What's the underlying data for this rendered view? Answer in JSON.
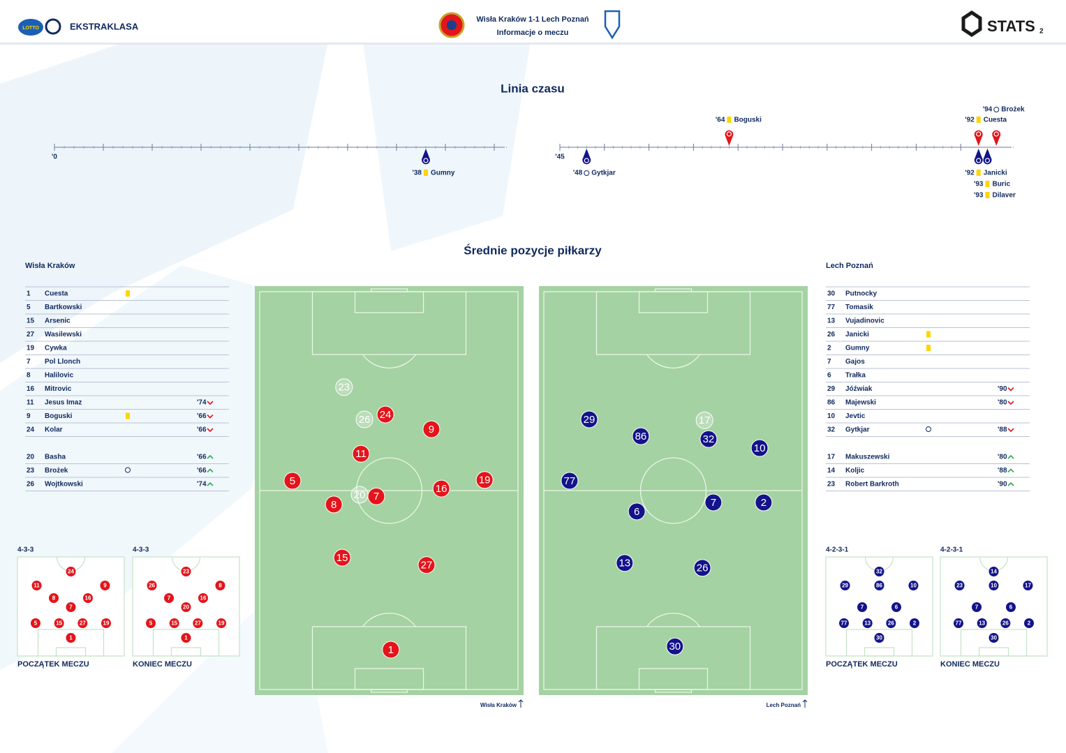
{
  "header": {
    "lotto": "LOTTO",
    "league": "EKSTRAKLASA",
    "title": "Wisła Kraków 1-1  Lech Poznań",
    "subtitle": "Informacje o meczu",
    "brand": "STATS",
    "page": "2"
  },
  "timeline": {
    "title": "Linia czasu",
    "halves": [
      {
        "start_label": "'0",
        "xlim": [
          0,
          45
        ],
        "ticks": [
          0,
          5,
          10,
          15,
          20,
          25,
          30,
          35,
          40,
          45
        ],
        "events": [
          {
            "minute": 38,
            "label": "'38",
            "player": "Gumny",
            "event": "yellow",
            "team": "away"
          }
        ]
      },
      {
        "start_label": "'45",
        "xlim": [
          45,
          95
        ],
        "ticks": [
          45,
          50,
          55,
          60,
          65,
          70,
          75,
          80,
          85,
          90
        ],
        "events": [
          {
            "minute": 48,
            "label": "'48",
            "player": "Gytkjar",
            "event": "goal",
            "team": "away"
          },
          {
            "minute": 64,
            "label": "'64",
            "player": "Boguski",
            "event": "yellow",
            "team": "home"
          },
          {
            "minute": 92,
            "label": "'92",
            "player": "Cuesta",
            "event": "yellow",
            "team": "home"
          },
          {
            "minute": 94,
            "label": "'94",
            "player": "Brożek",
            "event": "goal",
            "team": "home"
          },
          {
            "minute": 92,
            "label": "'92",
            "player": "Janicki",
            "event": "yellow",
            "team": "away"
          },
          {
            "minute": 93,
            "label": "'93",
            "player": "Buric",
            "event": "yellow",
            "team": "away"
          },
          {
            "minute": 93,
            "label": "'93",
            "player": "Dilaver",
            "event": "yellow",
            "team": "away"
          }
        ]
      }
    ]
  },
  "positions_title": "Średnie pozycje piłkarzy",
  "teams": [
    {
      "name": "Wisła Kraków",
      "side": "home",
      "color": "#e3151b",
      "starters": [
        {
          "number": 1,
          "name": "Cuesta",
          "card": "yellow"
        },
        {
          "number": 5,
          "name": "Bartkowski"
        },
        {
          "number": 15,
          "name": "Arsenic"
        },
        {
          "number": 27,
          "name": "Wasilewski"
        },
        {
          "number": 19,
          "name": "Cywka"
        },
        {
          "number": 7,
          "name": "Pol Llonch"
        },
        {
          "number": 8,
          "name": "Halilovic"
        },
        {
          "number": 16,
          "name": "Mitrovic"
        },
        {
          "number": 11,
          "name": "Jesus Imaz",
          "sub": {
            "minute": "'74",
            "dir": "out"
          }
        },
        {
          "number": 9,
          "name": "Boguski",
          "card": "yellow",
          "sub": {
            "minute": "'66",
            "dir": "out"
          }
        },
        {
          "number": 24,
          "name": "Kolar",
          "sub": {
            "minute": "'66",
            "dir": "out"
          }
        }
      ],
      "subs": [
        {
          "number": 20,
          "name": "Basha",
          "sub": {
            "minute": "'66",
            "dir": "in"
          }
        },
        {
          "number": 23,
          "name": "Brożek",
          "goal": true,
          "sub": {
            "minute": "'66",
            "dir": "in"
          }
        },
        {
          "number": 26,
          "name": "Wojtkowski",
          "sub": {
            "minute": "'74",
            "dir": "in"
          }
        }
      ],
      "avg_positions": [
        {
          "number": 23,
          "x": 33.2,
          "y": 24.7,
          "sub": true
        },
        {
          "number": 26,
          "x": 40.8,
          "y": 32.6,
          "sub": true
        },
        {
          "number": 24,
          "x": 48.6,
          "y": 31.4
        },
        {
          "number": 9,
          "x": 65.7,
          "y": 35.0
        },
        {
          "number": 11,
          "x": 39.5,
          "y": 41.0
        },
        {
          "number": 5,
          "x": 14.0,
          "y": 47.6
        },
        {
          "number": 20,
          "x": 39.0,
          "y": 51.0,
          "sub": true
        },
        {
          "number": 7,
          "x": 45.2,
          "y": 51.4
        },
        {
          "number": 16,
          "x": 69.4,
          "y": 49.5
        },
        {
          "number": 19,
          "x": 85.5,
          "y": 47.4
        },
        {
          "number": 8,
          "x": 29.4,
          "y": 53.4
        },
        {
          "number": 15,
          "x": 32.5,
          "y": 66.4
        },
        {
          "number": 27,
          "x": 63.9,
          "y": 68.2
        },
        {
          "number": 1,
          "x": 50.6,
          "y": 88.9
        }
      ],
      "formations": [
        {
          "shape": "4-3-3",
          "label": "POCZĄTEK MECZU",
          "rows": [
            [
              24
            ],
            [
              11,
              9
            ],
            [
              8,
              16
            ],
            [
              7
            ],
            [
              5,
              15,
              27,
              19
            ],
            [
              1
            ]
          ]
        },
        {
          "shape": "4-3-3",
          "label": "KONIEC MECZU",
          "rows": [
            [
              23
            ],
            [
              26,
              8
            ],
            [
              7,
              16
            ],
            [
              20
            ],
            [
              5,
              15,
              27,
              19
            ],
            [
              1
            ]
          ]
        }
      ]
    },
    {
      "name": "Lech Poznań",
      "side": "away",
      "color": "#13138a",
      "starters": [
        {
          "number": 30,
          "name": "Putnocky"
        },
        {
          "number": 77,
          "name": "Tomasik"
        },
        {
          "number": 13,
          "name": "Vujadinovic"
        },
        {
          "number": 26,
          "name": "Janicki",
          "card": "yellow"
        },
        {
          "number": 2,
          "name": "Gumny",
          "card": "yellow"
        },
        {
          "number": 7,
          "name": "Gajos"
        },
        {
          "number": 6,
          "name": "Trałka"
        },
        {
          "number": 29,
          "name": "Jóźwiak",
          "sub": {
            "minute": "'90",
            "dir": "out"
          }
        },
        {
          "number": 86,
          "name": "Majewski",
          "sub": {
            "minute": "'80",
            "dir": "out"
          }
        },
        {
          "number": 10,
          "name": "Jevtic"
        },
        {
          "number": 32,
          "name": "Gytkjar",
          "goal": true,
          "sub": {
            "minute": "'88",
            "dir": "out"
          }
        }
      ],
      "subs": [
        {
          "number": 17,
          "name": "Makuszewski",
          "sub": {
            "minute": "'80",
            "dir": "in"
          }
        },
        {
          "number": 14,
          "name": "Koljic",
          "sub": {
            "minute": "'88",
            "dir": "in"
          }
        },
        {
          "number": 23,
          "name": "Robert Barkroth",
          "sub": {
            "minute": "'90",
            "dir": "in"
          }
        }
      ],
      "avg_positions": [
        {
          "number": 29,
          "x": 18.7,
          "y": 32.6
        },
        {
          "number": 86,
          "x": 37.9,
          "y": 36.7
        },
        {
          "number": 17,
          "x": 61.6,
          "y": 32.8,
          "sub": true
        },
        {
          "number": 32,
          "x": 63.1,
          "y": 37.4
        },
        {
          "number": 10,
          "x": 82.1,
          "y": 39.6
        },
        {
          "number": 77,
          "x": 11.4,
          "y": 47.6
        },
        {
          "number": 6,
          "x": 36.4,
          "y": 55.1
        },
        {
          "number": 7,
          "x": 64.9,
          "y": 52.9
        },
        {
          "number": 2,
          "x": 83.6,
          "y": 52.9
        },
        {
          "number": 13,
          "x": 31.9,
          "y": 67.7
        },
        {
          "number": 26,
          "x": 60.8,
          "y": 68.9
        },
        {
          "number": 30,
          "x": 50.6,
          "y": 88.1
        }
      ],
      "formations": [
        {
          "shape": "4-2-3-1",
          "label": "POCZĄTEK MECZU",
          "rows": [
            [
              32
            ],
            [
              29,
              86,
              10
            ],
            [
              7,
              6
            ],
            [
              77,
              13,
              26,
              2
            ],
            [
              30
            ]
          ]
        },
        {
          "shape": "4-2-3-1",
          "label": "KONIEC MECZU",
          "rows": [
            [
              14
            ],
            [
              23,
              10,
              17
            ],
            [
              7,
              6
            ],
            [
              77,
              13,
              26,
              2
            ],
            [
              30
            ]
          ]
        }
      ]
    }
  ]
}
